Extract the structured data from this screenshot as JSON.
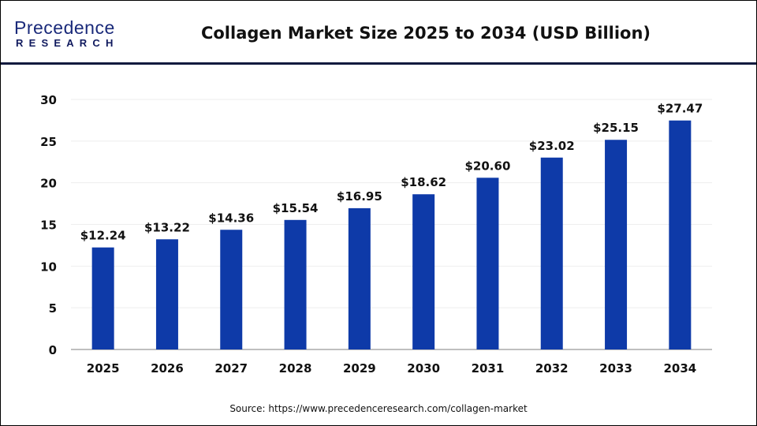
{
  "logo": {
    "line1": "Precedence",
    "line2": "RESEARCH"
  },
  "source": "Source:  https://www.precedenceresearch.com/collagen-market",
  "colors": {
    "bar": "#0e3aa8",
    "axis": "#bfbfbf",
    "grid": "#eeeeee",
    "divider": "#101a3e"
  },
  "chart_data": {
    "type": "bar",
    "title": "Collagen Market Size 2025 to 2034 (USD Billion)",
    "xlabel": "",
    "ylabel": "",
    "categories": [
      "2025",
      "2026",
      "2027",
      "2028",
      "2029",
      "2030",
      "2031",
      "2032",
      "2033",
      "2034"
    ],
    "values": [
      12.24,
      13.22,
      14.36,
      15.54,
      16.95,
      18.62,
      20.6,
      23.02,
      25.15,
      27.47
    ],
    "data_labels": [
      "$12.24",
      "$13.22",
      "$14.36",
      "$15.54",
      "$16.95",
      "$18.62",
      "$20.60",
      "$23.02",
      "$25.15",
      "$27.47"
    ],
    "ylim": [
      0,
      30
    ],
    "yticks": [
      0,
      5,
      10,
      15,
      20,
      25,
      30
    ],
    "grid": true,
    "legend": "none"
  }
}
